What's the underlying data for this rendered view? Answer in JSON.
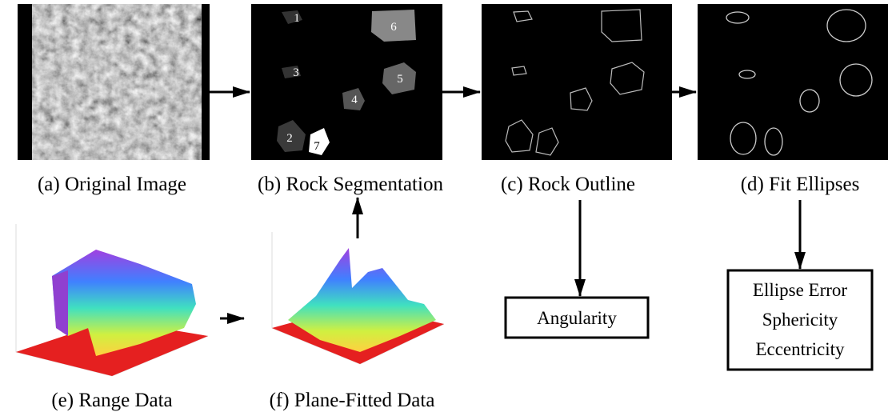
{
  "panels": [
    {
      "caption": "(a) Original Image"
    },
    {
      "caption": "(b) Rock Segmentation"
    },
    {
      "caption": "(c) Rock Outline"
    },
    {
      "caption": "(d) Fit Ellipses"
    },
    {
      "caption": "(e) Range Data"
    },
    {
      "caption": "(f) Plane-Fitted Data"
    }
  ],
  "segments": [
    "1",
    "2",
    "3",
    "4",
    "5",
    "6",
    "7"
  ],
  "boxes": [
    {
      "lines": [
        "Angularity"
      ]
    },
    {
      "lines": [
        "Ellipse Error",
        "Sphericity",
        "Eccentricity"
      ]
    }
  ]
}
